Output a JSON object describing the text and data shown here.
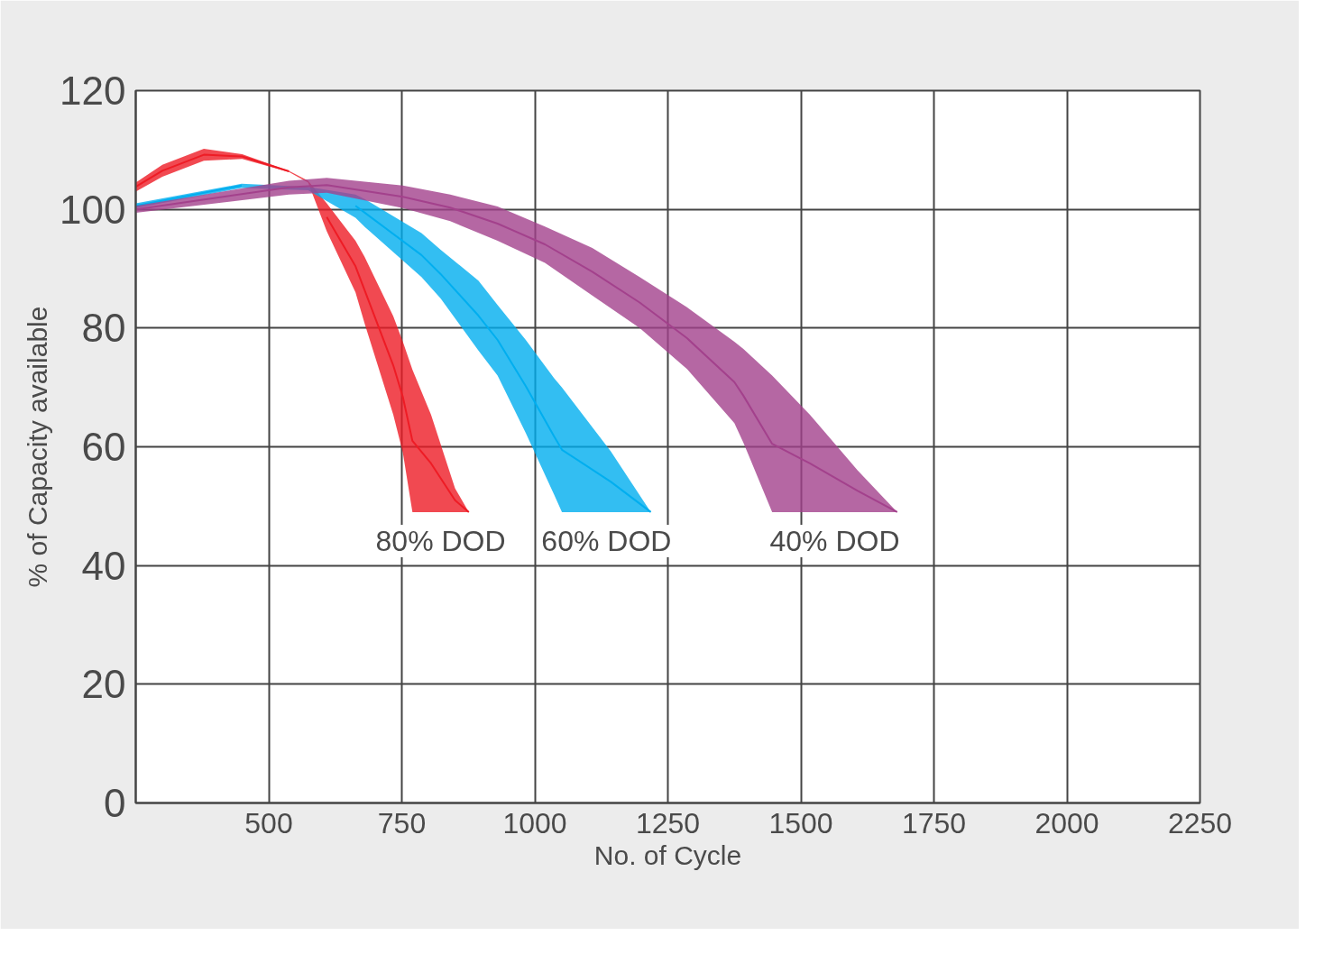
{
  "chart_data": {
    "type": "line",
    "xlabel": "No. of Cycle",
    "ylabel": "% of Capacity available",
    "xlim": [
      250,
      2250
    ],
    "ylim": [
      0,
      120
    ],
    "xticks": [
      500,
      750,
      1000,
      1250,
      1500,
      1750,
      2000,
      2250
    ],
    "yticks": [
      0,
      20,
      40,
      60,
      80,
      100,
      120
    ],
    "grid": true,
    "series": [
      {
        "name": "80% DOD",
        "color": "#ee1c25",
        "x": [
          250,
          300,
          378,
          450,
          538,
          574,
          609,
          663,
          680,
          734,
          752,
          770,
          805,
          850,
          876
        ],
        "values": [
          103.8,
          106.5,
          109.2,
          108.9,
          106.4,
          null,
          98.7,
          90.4,
          86.4,
          73.7,
          68.4,
          61,
          57.2,
          51,
          49
        ],
        "upper": [
          104.5,
          107.5,
          110.2,
          109.3,
          106.5,
          104.8,
          101,
          94.7,
          92,
          82,
          77.7,
          73,
          65.4,
          53,
          49
        ],
        "lower": [
          103,
          105.5,
          108.2,
          108.5,
          106.3,
          104.5,
          96.3,
          86,
          80.8,
          65.4,
          59,
          49,
          49,
          49,
          49
        ]
      },
      {
        "name": "60% DOD",
        "color": "#00aeef",
        "x": [
          250,
          449,
          574,
          663,
          681,
          787,
          823,
          894,
          930,
          983,
          1036,
          1051,
          1143,
          1218
        ],
        "values": [
          100.6,
          104,
          null,
          100.6,
          99.4,
          92.3,
          89.1,
          82.1,
          78,
          70.2,
          61.8,
          59.5,
          54.1,
          49
        ],
        "upper": [
          101,
          104.3,
          103.8,
          102.5,
          101.7,
          96,
          93.2,
          88,
          83.9,
          78,
          71.6,
          70,
          59.2,
          49
        ],
        "lower": [
          100.2,
          103.6,
          103.2,
          98.6,
          97,
          88.6,
          85,
          76.2,
          72,
          62.3,
          52,
          49,
          49,
          49
        ]
      },
      {
        "name": "40% DOD",
        "color": "#a3418c",
        "x": [
          250,
          538,
          609,
          752,
          841,
          930,
          1019,
          1108,
          1197,
          1286,
          1375,
          1392,
          1446,
          1517,
          1606,
          1681
        ],
        "values": [
          100,
          103.7,
          104.1,
          102.1,
          100.3,
          97.6,
          94.1,
          89.5,
          84.3,
          78.3,
          70.9,
          68.6,
          60.5,
          57.2,
          52.6,
          49
        ],
        "upper": [
          100.6,
          104.8,
          105.3,
          104,
          102.5,
          100.5,
          97.1,
          93.5,
          88.6,
          83.5,
          77.7,
          76.5,
          72,
          65.4,
          56.1,
          49
        ],
        "lower": [
          99.4,
          102.5,
          102.8,
          100.2,
          98,
          94.7,
          91,
          85.5,
          80,
          73.1,
          64,
          60.7,
          49,
          49,
          49,
          49
        ]
      }
    ]
  }
}
